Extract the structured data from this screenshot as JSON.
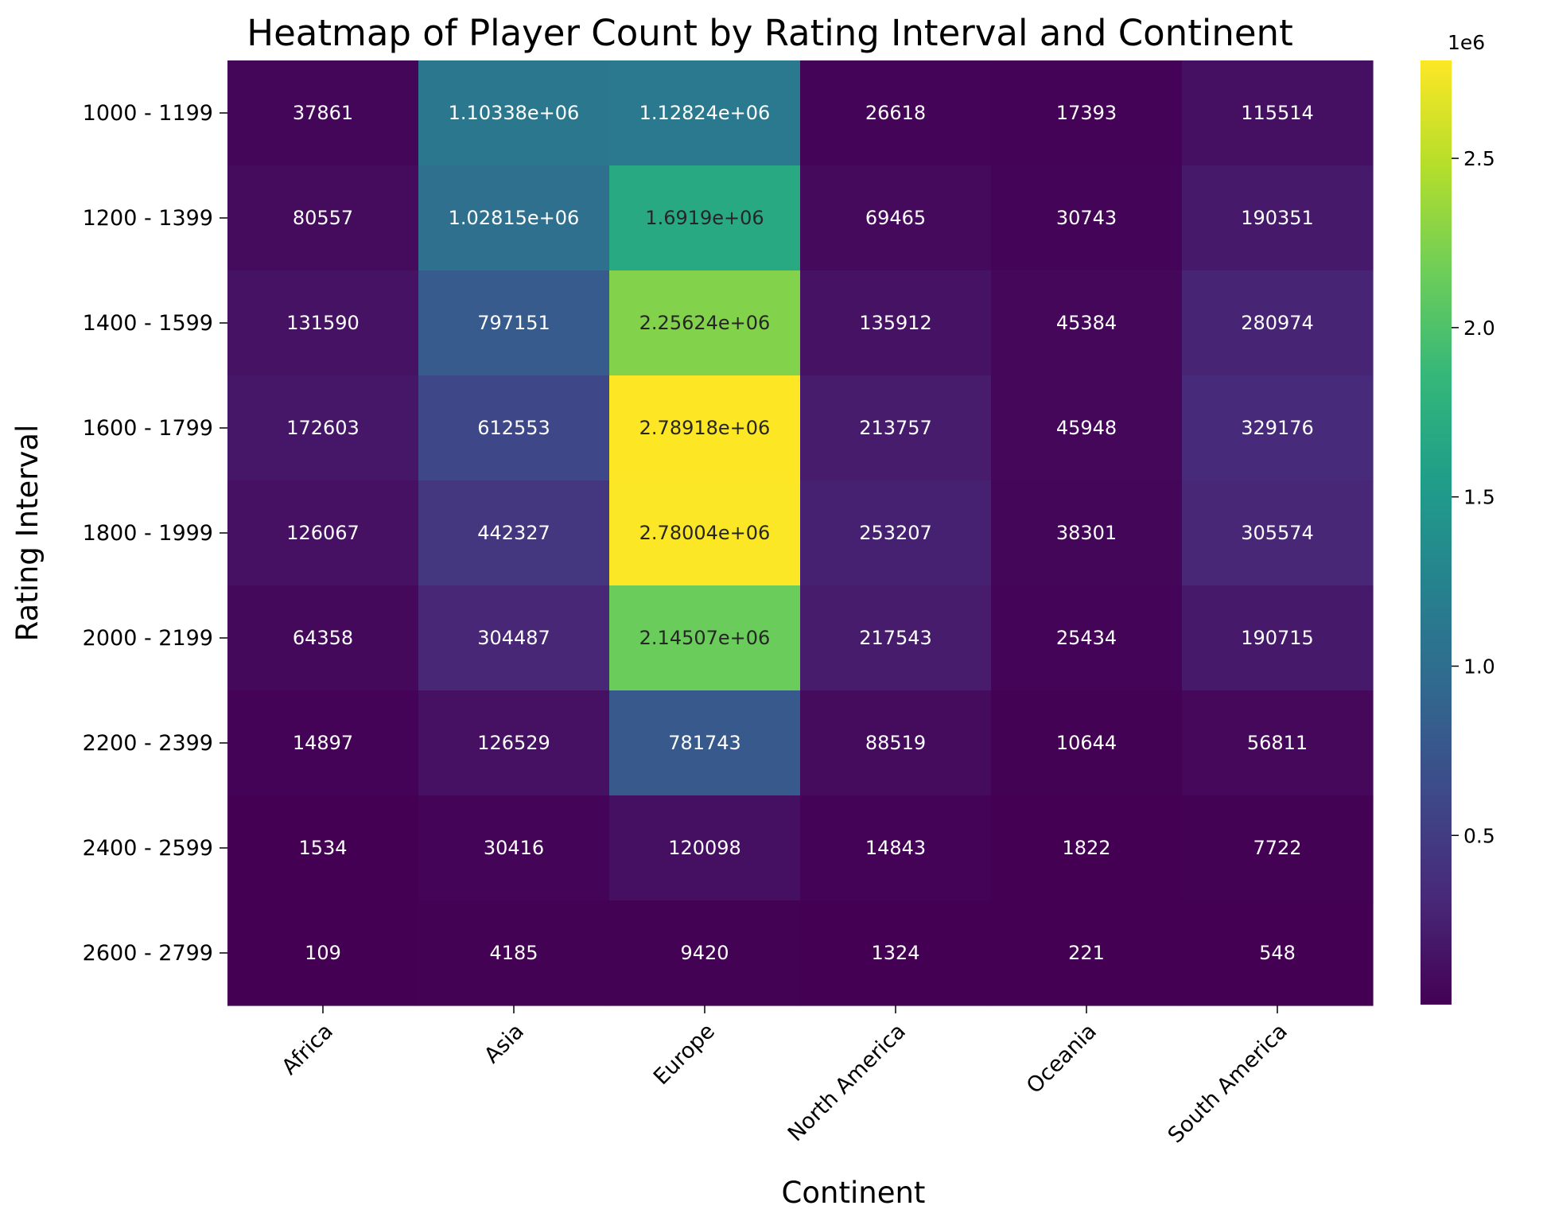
{
  "chart_data": {
    "type": "heatmap",
    "title": "Heatmap of Player Count by Rating Interval and Continent",
    "xlabel": "Continent",
    "ylabel": "Rating Interval",
    "x_categories": [
      "Africa",
      "Asia",
      "Europe",
      "North America",
      "Oceania",
      "South America"
    ],
    "y_categories": [
      "1000 - 1199",
      "1200 - 1399",
      "1400 - 1599",
      "1600 - 1799",
      "1800 - 1999",
      "2000 - 2199",
      "2200 - 2399",
      "2400 - 2599",
      "2600 - 2799"
    ],
    "values": [
      [
        37861,
        1103380,
        1128240,
        26618,
        17393,
        115514
      ],
      [
        80557,
        1028150,
        1691900,
        69465,
        30743,
        190351
      ],
      [
        131590,
        797151,
        2256240,
        135912,
        45384,
        280974
      ],
      [
        172603,
        612553,
        2789180,
        213757,
        45948,
        329176
      ],
      [
        126067,
        442327,
        2780040,
        253207,
        38301,
        305574
      ],
      [
        64358,
        304487,
        2145070,
        217543,
        25434,
        190715
      ],
      [
        14897,
        126529,
        781743,
        88519,
        10644,
        56811
      ],
      [
        1534,
        30416,
        120098,
        14843,
        1822,
        7722
      ],
      [
        109,
        4185,
        9420,
        1324,
        221,
        548
      ]
    ],
    "cell_labels": [
      [
        "37861",
        "1.10338e+06",
        "1.12824e+06",
        "26618",
        "17393",
        "115514"
      ],
      [
        "80557",
        "1.02815e+06",
        "1.6919e+06",
        "69465",
        "30743",
        "190351"
      ],
      [
        "131590",
        "797151",
        "2.25624e+06",
        "135912",
        "45384",
        "280974"
      ],
      [
        "172603",
        "612553",
        "2.78918e+06",
        "213757",
        "45948",
        "329176"
      ],
      [
        "126067",
        "442327",
        "2.78004e+06",
        "253207",
        "38301",
        "305574"
      ],
      [
        "64358",
        "304487",
        "2.14507e+06",
        "217543",
        "25434",
        "190715"
      ],
      [
        "14897",
        "126529",
        "781743",
        "88519",
        "10644",
        "56811"
      ],
      [
        "1534",
        "30416",
        "120098",
        "14843",
        "1822",
        "7722"
      ],
      [
        "109",
        "4185",
        "9420",
        "1324",
        "221",
        "548"
      ]
    ],
    "colormap": "viridis",
    "colorbar": {
      "vmin": 109,
      "vmax": 2789180,
      "offset_label": "1e6",
      "ticks": [
        0.5,
        1.0,
        1.5,
        2.0,
        2.5
      ],
      "tick_labels": [
        "0.5",
        "1.0",
        "1.5",
        "2.0",
        "2.5"
      ]
    }
  }
}
